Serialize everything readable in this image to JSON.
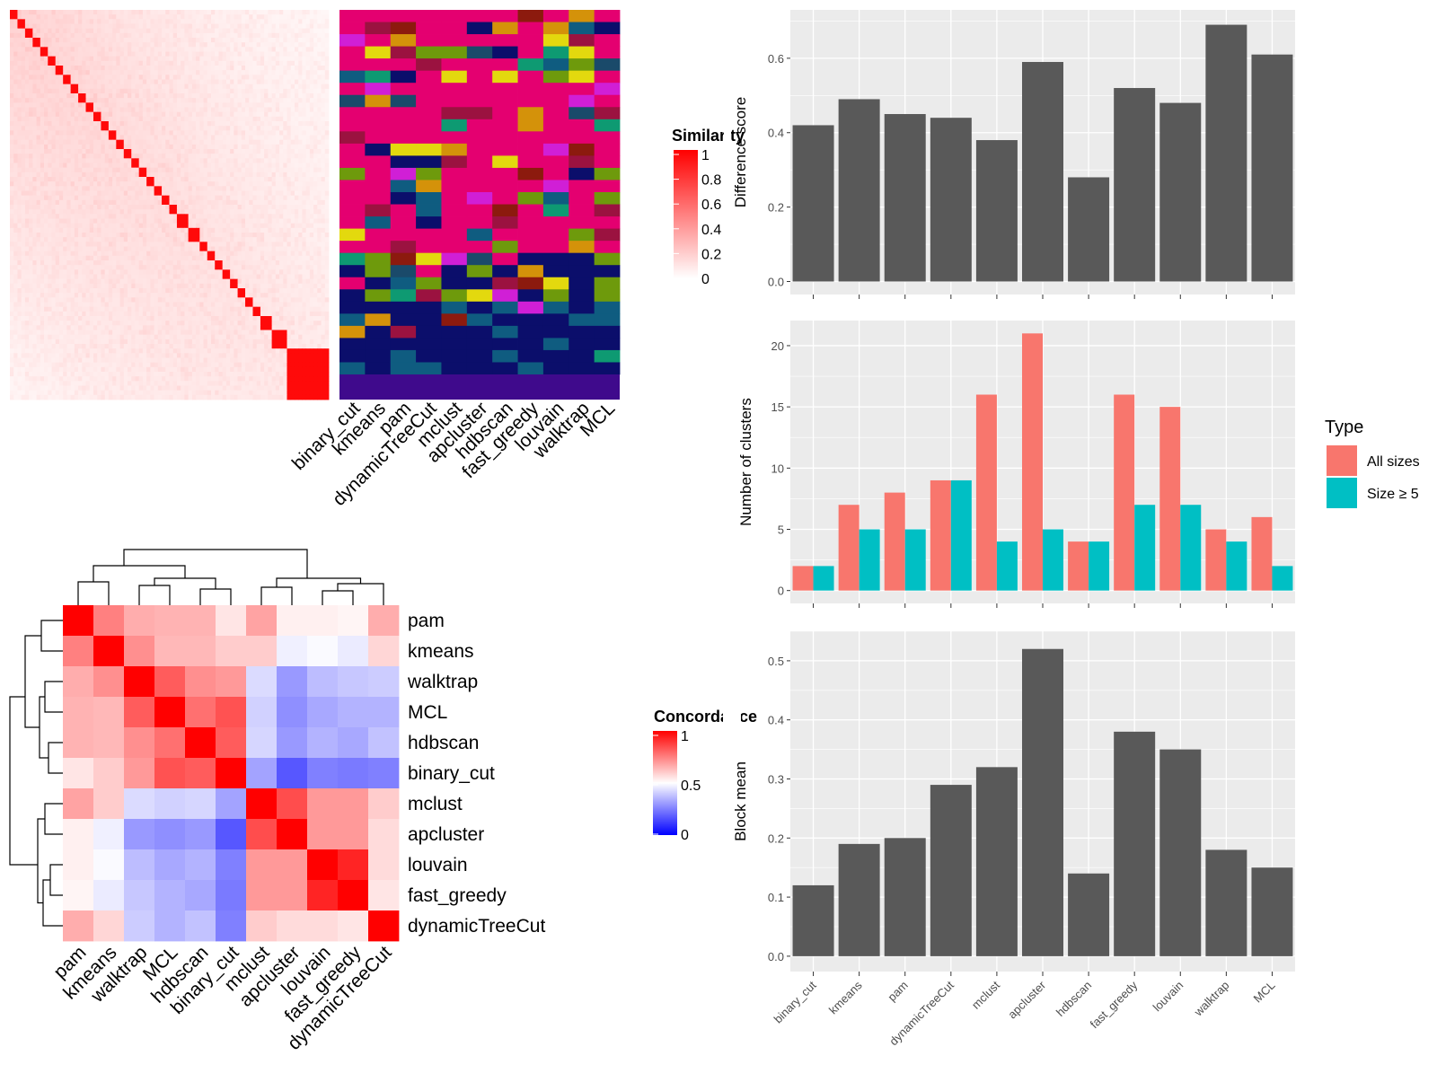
{
  "methods_axis": [
    "binary_cut",
    "kmeans",
    "pam",
    "dynamicTreeCut",
    "mclust",
    "apcluster",
    "hdbscan",
    "fast_greedy",
    "louvain",
    "walktrap",
    "MCL"
  ],
  "colors": {
    "bar_gray": "#595959",
    "panel_bg": "#ebebeb",
    "all_sizes": "#F8766D",
    "size_ge5": "#00BFC4",
    "similarity_high": "#ff0000",
    "concordance_low": "#0000ff"
  },
  "similarity_legend": {
    "title": "Similarity",
    "ticks": [
      "1",
      "0.8",
      "0.6",
      "0.4",
      "0.2",
      "0"
    ]
  },
  "concordance_legend": {
    "title": "Concordance",
    "ticks": [
      "1",
      "0.5",
      "0"
    ]
  },
  "type_legend": {
    "title": "Type",
    "items": [
      "All sizes",
      "Size ≥ 5"
    ]
  },
  "chart_data": [
    {
      "type": "heatmap",
      "title": "",
      "legend_title": "Similarity",
      "value_range": [
        0,
        1
      ],
      "n_terms": 84,
      "block_sizes": [
        2,
        2,
        2,
        2,
        2,
        2,
        2,
        2,
        2,
        2,
        2,
        2,
        2,
        2,
        2,
        2,
        2,
        2,
        2,
        2,
        2,
        2,
        3,
        3,
        2,
        2,
        2,
        2,
        2,
        2,
        2,
        2,
        3,
        4
      ],
      "columns": [
        "binary_cut",
        "kmeans",
        "pam",
        "dynamicTreeCut",
        "mclust",
        "apcluster",
        "hdbscan",
        "fast_greedy",
        "louvain",
        "walktrap",
        "MCL"
      ]
    },
    {
      "type": "heatmap",
      "title": "",
      "legend_title": "Concordance",
      "value_range": [
        0,
        1
      ],
      "rows": [
        "pam",
        "kmeans",
        "walktrap",
        "MCL",
        "hdbscan",
        "binary_cut",
        "mclust",
        "apcluster",
        "louvain",
        "fast_greedy",
        "dynamicTreeCut"
      ],
      "columns": [
        "pam",
        "kmeans",
        "walktrap",
        "MCL",
        "hdbscan",
        "binary_cut",
        "mclust",
        "apcluster",
        "louvain",
        "fast_greedy",
        "dynamicTreeCut"
      ],
      "values": [
        [
          1.0,
          0.75,
          0.66,
          0.65,
          0.65,
          0.55,
          0.68,
          0.53,
          0.53,
          0.52,
          0.66
        ],
        [
          0.75,
          1.0,
          0.72,
          0.64,
          0.64,
          0.6,
          0.6,
          0.47,
          0.49,
          0.46,
          0.58
        ],
        [
          0.66,
          0.72,
          1.0,
          0.82,
          0.72,
          0.7,
          0.43,
          0.3,
          0.37,
          0.39,
          0.4
        ],
        [
          0.65,
          0.64,
          0.82,
          1.0,
          0.78,
          0.84,
          0.41,
          0.28,
          0.33,
          0.35,
          0.35
        ],
        [
          0.65,
          0.64,
          0.72,
          0.78,
          1.0,
          0.82,
          0.42,
          0.3,
          0.35,
          0.33,
          0.38
        ],
        [
          0.55,
          0.6,
          0.7,
          0.84,
          0.82,
          1.0,
          0.32,
          0.17,
          0.25,
          0.24,
          0.25
        ],
        [
          0.68,
          0.6,
          0.43,
          0.41,
          0.42,
          0.32,
          1.0,
          0.85,
          0.7,
          0.7,
          0.6
        ],
        [
          0.53,
          0.47,
          0.3,
          0.28,
          0.3,
          0.17,
          0.85,
          1.0,
          0.7,
          0.7,
          0.57
        ],
        [
          0.53,
          0.49,
          0.37,
          0.33,
          0.35,
          0.25,
          0.7,
          0.7,
          1.0,
          0.93,
          0.57
        ],
        [
          0.52,
          0.46,
          0.39,
          0.35,
          0.33,
          0.24,
          0.7,
          0.7,
          0.93,
          1.0,
          0.55
        ],
        [
          0.66,
          0.58,
          0.4,
          0.35,
          0.38,
          0.25,
          0.6,
          0.57,
          0.57,
          0.55,
          1.0
        ]
      ]
    },
    {
      "type": "bar",
      "title": "",
      "categories": [
        "binary_cut",
        "kmeans",
        "pam",
        "dynamicTreeCut",
        "mclust",
        "apcluster",
        "hdbscan",
        "fast_greedy",
        "louvain",
        "walktrap",
        "MCL"
      ],
      "values": [
        0.42,
        0.49,
        0.45,
        0.44,
        0.38,
        0.59,
        0.28,
        0.52,
        0.48,
        0.69,
        0.61
      ],
      "xlabel": "",
      "ylabel": "Difference score",
      "ylim": [
        -0.035,
        0.73
      ],
      "yticks": [
        "0.0",
        "0.2",
        "0.4",
        "0.6"
      ],
      "grid": true
    },
    {
      "type": "bar",
      "title": "",
      "categories": [
        "binary_cut",
        "kmeans",
        "pam",
        "dynamicTreeCut",
        "mclust",
        "apcluster",
        "hdbscan",
        "fast_greedy",
        "louvain",
        "walktrap",
        "MCL"
      ],
      "series": [
        {
          "name": "All sizes",
          "values": [
            2,
            7,
            8,
            9,
            16,
            21,
            4,
            16,
            15,
            5,
            6
          ]
        },
        {
          "name": "Size ≥ 5",
          "values": [
            2,
            5,
            5,
            9,
            4,
            5,
            4,
            7,
            7,
            4,
            2
          ]
        }
      ],
      "xlabel": "",
      "ylabel": "Number of clusters",
      "ylim": [
        -1.05,
        22.05
      ],
      "yticks": [
        "0",
        "5",
        "10",
        "15",
        "20"
      ],
      "legend": "right",
      "grid": true
    },
    {
      "type": "bar",
      "title": "",
      "categories": [
        "binary_cut",
        "kmeans",
        "pam",
        "dynamicTreeCut",
        "mclust",
        "apcluster",
        "hdbscan",
        "fast_greedy",
        "louvain",
        "walktrap",
        "MCL"
      ],
      "values": [
        0.12,
        0.19,
        0.2,
        0.29,
        0.32,
        0.52,
        0.14,
        0.38,
        0.35,
        0.18,
        0.15
      ],
      "xlabel": "",
      "ylabel": "Block mean",
      "ylim": [
        -0.026,
        0.55
      ],
      "yticks": [
        "0.0",
        "0.1",
        "0.2",
        "0.3",
        "0.4",
        "0.5"
      ],
      "grid": true
    }
  ]
}
